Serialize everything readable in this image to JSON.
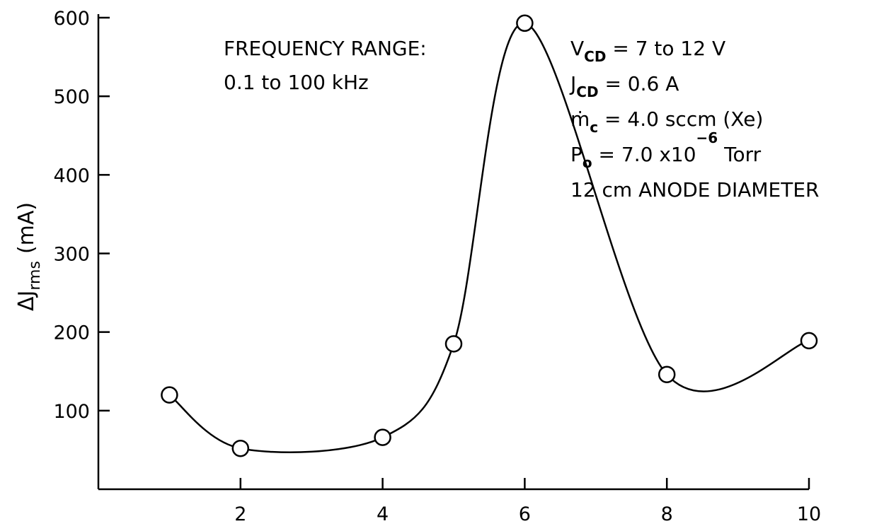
{
  "chart_data": {
    "type": "line",
    "title": "",
    "xlabel": "",
    "ylabel": {
      "prefix": "Δ",
      "main": "J",
      "sub": "rms",
      "unit": "(mA)"
    },
    "xlim": [
      0,
      10
    ],
    "ylim": [
      0,
      600
    ],
    "x_ticks": [
      2,
      4,
      6,
      8,
      10
    ],
    "y_ticks": [
      100,
      200,
      300,
      400,
      500,
      600
    ],
    "grid": false,
    "series": [
      {
        "x": [
          1,
          2,
          4,
          5,
          6,
          8,
          10
        ],
        "y": [
          120,
          52,
          66,
          185,
          593,
          146,
          189
        ]
      }
    ],
    "annotations": {
      "freq_line1": "FREQUENCY RANGE:",
      "freq_line2": "0.1 to 100 kHz",
      "vcd": {
        "main": "V",
        "sub": "CD",
        "rest": " = 7 to 12 V"
      },
      "jcd": {
        "main": "J",
        "sub": "CD",
        "rest": " = 0.6 A"
      },
      "mdot": {
        "main": "ṁ",
        "sub": "c",
        "rest": " = 4.0 sccm (Xe)"
      },
      "po": {
        "main": "P",
        "sub": "o",
        "rest": " = 7.0 x10",
        "sup": "−6",
        "tail": " Torr"
      },
      "anode": "12 cm ANODE DIAMETER"
    }
  }
}
